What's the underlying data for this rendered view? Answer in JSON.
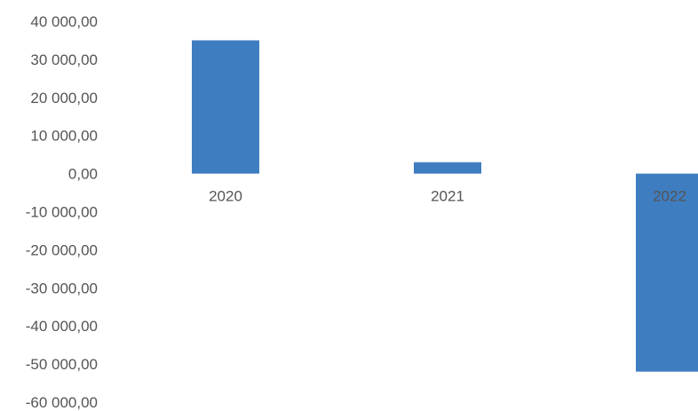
{
  "chart_data": {
    "type": "bar",
    "categories": [
      "2020",
      "2021",
      "2022"
    ],
    "values": [
      35000,
      3000,
      -52000
    ],
    "ylim": [
      -60000,
      40000
    ],
    "yticks": [
      "40 000,00",
      "30 000,00",
      "20 000,00",
      "10 000,00",
      "0,00",
      "-10 000,00",
      "-20 000,00",
      "-30 000,00",
      "-40 000,00",
      "-50 000,00",
      "-60 000,00"
    ],
    "grid": false,
    "bar_color": "#3f7dc1"
  }
}
